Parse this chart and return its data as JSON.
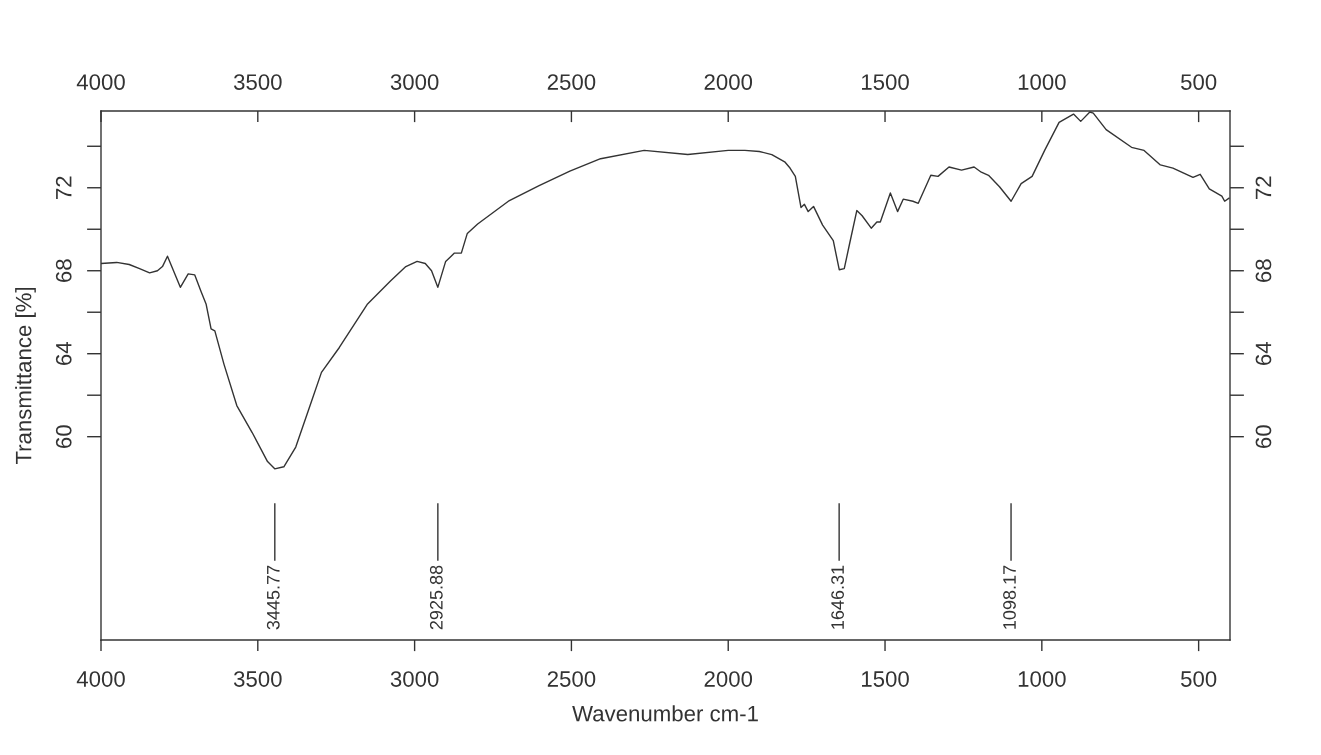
{
  "chart_data": {
    "type": "line",
    "xlabel": "Wavenumber cm-1",
    "ylabel": "Transmittance [%]",
    "x": [
      4000,
      3950,
      3910,
      3877,
      3845,
      3820,
      3804,
      3788,
      3747,
      3722,
      3701,
      3681,
      3665,
      3649,
      3637,
      3608,
      3567,
      3518,
      3469,
      3446,
      3417,
      3379,
      3338,
      3297,
      3240,
      3150,
      3077,
      3028,
      2992,
      2966,
      2946,
      2926,
      2901,
      2873,
      2851,
      2832,
      2799,
      2701,
      2603,
      2505,
      2407,
      2268,
      2129,
      2000,
      1947,
      1901,
      1861,
      1820,
      1803,
      1786,
      1768,
      1757,
      1745,
      1728,
      1699,
      1665,
      1646,
      1630,
      1613,
      1590,
      1573,
      1544,
      1526,
      1515,
      1483,
      1460,
      1442,
      1411,
      1394,
      1354,
      1331,
      1296,
      1256,
      1216,
      1193,
      1170,
      1135,
      1098,
      1066,
      1031,
      991,
      945,
      899,
      876,
      847,
      836,
      795,
      714,
      674,
      622,
      582,
      518,
      495,
      466,
      426,
      417,
      403
    ],
    "series": [
      {
        "color": "#333333",
        "values": [
          68.35,
          68.4,
          68.3,
          68.1,
          67.9,
          68.0,
          68.2,
          68.7,
          67.2,
          67.85,
          67.8,
          67.0,
          66.4,
          65.2,
          65.1,
          63.5,
          61.5,
          60.2,
          58.8,
          58.45,
          58.55,
          59.5,
          61.3,
          63.1,
          64.3,
          66.4,
          67.5,
          68.2,
          68.45,
          68.35,
          68.0,
          67.2,
          68.45,
          68.85,
          68.85,
          69.8,
          70.25,
          71.35,
          72.1,
          72.8,
          73.4,
          73.8,
          73.6,
          73.8,
          73.8,
          73.75,
          73.6,
          73.25,
          72.95,
          72.55,
          71.05,
          71.2,
          70.85,
          71.1,
          70.2,
          69.45,
          68.05,
          68.1,
          69.3,
          70.9,
          70.65,
          70.05,
          70.35,
          70.35,
          71.75,
          70.85,
          71.45,
          71.35,
          71.25,
          72.6,
          72.55,
          73.0,
          72.85,
          73.0,
          72.75,
          72.6,
          72.05,
          71.35,
          72.2,
          72.55,
          73.8,
          75.15,
          75.55,
          75.2,
          75.65,
          75.6,
          74.8,
          73.95,
          73.8,
          73.1,
          72.95,
          72.5,
          72.65,
          71.95,
          71.6,
          71.35,
          71.5
        ]
      }
    ],
    "xlim": [
      4000,
      400
    ],
    "xticks": [
      4000,
      3500,
      3000,
      2500,
      2000,
      1500,
      1000,
      500
    ],
    "x2lim": [
      4000,
      400
    ],
    "x2ticks": [
      4000,
      3500,
      3000,
      2500,
      2000,
      1500,
      1000,
      500
    ],
    "ylim": [
      50.2,
      75.7
    ],
    "yticks": [
      60,
      {
        "value": 62,
        "label": null
      },
      64,
      {
        "value": 66,
        "label": null
      },
      68,
      {
        "value": 70,
        "label": null
      },
      72,
      {
        "value": 74,
        "label": null
      }
    ],
    "y2lim": [
      50.2,
      75.7
    ],
    "y2ticks": [
      60,
      {
        "value": 62,
        "label": null
      },
      64,
      {
        "value": 66,
        "label": null
      },
      68,
      {
        "value": 70,
        "label": null
      },
      72,
      {
        "value": 74,
        "label": null
      }
    ],
    "ref_lines": [
      {
        "axis": "x",
        "value": 3445.77,
        "label": "3445.77"
      },
      {
        "axis": "x",
        "value": 2925.88,
        "label": "2925.88"
      },
      {
        "axis": "x",
        "value": 1646.31,
        "label": "1646.31"
      },
      {
        "axis": "x",
        "value": 1098.17,
        "label": "1098.17"
      }
    ]
  }
}
